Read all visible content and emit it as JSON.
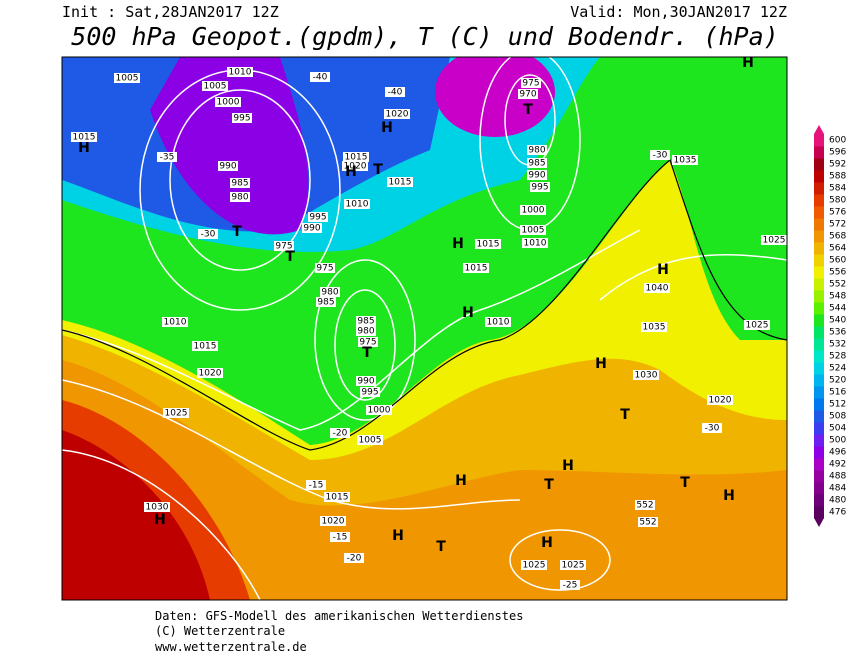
{
  "header": {
    "init": "Init : Sat,28JAN2017 12Z",
    "valid": "Valid: Mon,30JAN2017 12Z",
    "title": "500 hPa Geopot.(gpdm), T (C) und Bodendr. (hPa)"
  },
  "legend": {
    "levels": [
      476,
      480,
      484,
      488,
      492,
      496,
      500,
      504,
      508,
      512,
      516,
      520,
      524,
      528,
      532,
      536,
      540,
      544,
      548,
      552,
      556,
      560,
      564,
      568,
      572,
      576,
      580,
      584,
      588,
      592,
      596,
      600
    ],
    "colors": [
      "#5a0060",
      "#6e0078",
      "#82008c",
      "#9600a0",
      "#aa00c8",
      "#8c00e6",
      "#6e1ef0",
      "#3c3cf0",
      "#1e5ae6",
      "#0078f0",
      "#0096f0",
      "#00b4f0",
      "#00d2e6",
      "#00e6c8",
      "#00e696",
      "#00e664",
      "#1ee61e",
      "#5af000",
      "#96f000",
      "#c8f000",
      "#f0f000",
      "#f0d200",
      "#f0b400",
      "#f09600",
      "#f07800",
      "#f05a00",
      "#e63c00",
      "#d21e00",
      "#be0000",
      "#a00014",
      "#c80050",
      "#e6147a"
    ]
  },
  "map_labels": [
    "1005",
    "1010",
    "1005",
    "1000",
    "995",
    "H",
    "1015",
    "-35",
    "990",
    "985",
    "980",
    "T",
    "-30",
    "975",
    "T",
    "995",
    "990",
    "975",
    "980",
    "985",
    "1015",
    "1020",
    "H",
    "T",
    "1015",
    "1010",
    "H",
    "1020",
    "-40",
    "-40",
    "H",
    "1015",
    "1015",
    "H",
    "1010",
    "985",
    "980",
    "975",
    "T",
    "990",
    "995",
    "1000",
    "1005",
    "975",
    "970",
    "T",
    "980",
    "985",
    "990",
    "995",
    "1000",
    "1005",
    "1010",
    "H",
    "1035",
    "H",
    "1040",
    "1035",
    "H",
    "1030",
    "T",
    "1020",
    "1025",
    "1025",
    "H",
    "H",
    "T",
    "H",
    "T",
    "H",
    "1025",
    "1025",
    "T",
    "H",
    "1030",
    "H",
    "1020",
    "1015",
    "1010",
    "1015",
    "1020",
    "1025",
    "-25",
    "-20",
    "-15",
    "-15",
    "-20",
    "-25",
    "552",
    "552",
    "-30",
    "-30"
  ],
  "footer": [
    "Daten: GFS-Modell des amerikanischen Wetterdienstes",
    "(C) Wetterzentrale",
    "www.wetterzentrale.de"
  ]
}
